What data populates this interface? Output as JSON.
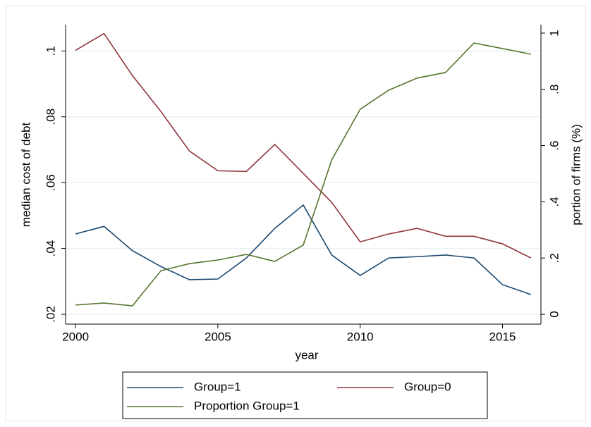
{
  "chart_data": {
    "type": "line",
    "x_label": "year",
    "y_label": "median cost of debt",
    "y2_label": "portion of firms (%)",
    "x": [
      2000,
      2001,
      2002,
      2003,
      2004,
      2005,
      2006,
      2007,
      2008,
      2009,
      2010,
      2011,
      2012,
      2013,
      2014,
      2015,
      2016
    ],
    "xlim": [
      1999.65,
      2016.35
    ],
    "xticks": [
      2000,
      2005,
      2010,
      2015
    ],
    "ylim": [
      0.017,
      0.108
    ],
    "yticks": [
      {
        "value": 0.02,
        "label": ".02"
      },
      {
        "value": 0.04,
        "label": ".04"
      },
      {
        "value": 0.06,
        "label": ".06"
      },
      {
        "value": 0.08,
        "label": ".08"
      },
      {
        "value": 0.1,
        "label": ".1"
      }
    ],
    "y2lim": [
      -0.035,
      1.03
    ],
    "y2ticks": [
      0,
      {
        "value": 0.2,
        "label": ".2"
      },
      {
        "value": 0.4,
        "label": ".4"
      },
      {
        "value": 0.6,
        "label": ".6"
      },
      {
        "value": 0.8,
        "label": ".8"
      },
      1
    ],
    "grid": true,
    "series": [
      {
        "name": "Group=1",
        "color": "#1a476f",
        "values": [
          0.0444,
          0.0467,
          0.0393,
          0.0345,
          0.0305,
          0.0307,
          0.0371,
          0.0461,
          0.0532,
          0.038,
          0.0318,
          0.0371,
          0.0375,
          0.038,
          0.0371,
          0.029,
          0.026
        ]
      },
      {
        "name": "Group=0",
        "color": "#90353b",
        "values": [
          0.1002,
          0.1053,
          0.0925,
          0.0816,
          0.0696,
          0.0636,
          0.0634,
          0.0716,
          0.0628,
          0.054,
          0.042,
          0.0444,
          0.0461,
          0.0437,
          0.0437,
          0.0414,
          0.0371
        ]
      },
      {
        "name": "Proportion Group=1",
        "color": "#55752f",
        "axis": "y2",
        "values": [
          0.033,
          0.04,
          0.03,
          0.155,
          0.18,
          0.193,
          0.213,
          0.188,
          0.246,
          0.549,
          0.729,
          0.797,
          0.84,
          0.86,
          0.965,
          0.945,
          0.925
        ]
      }
    ]
  }
}
